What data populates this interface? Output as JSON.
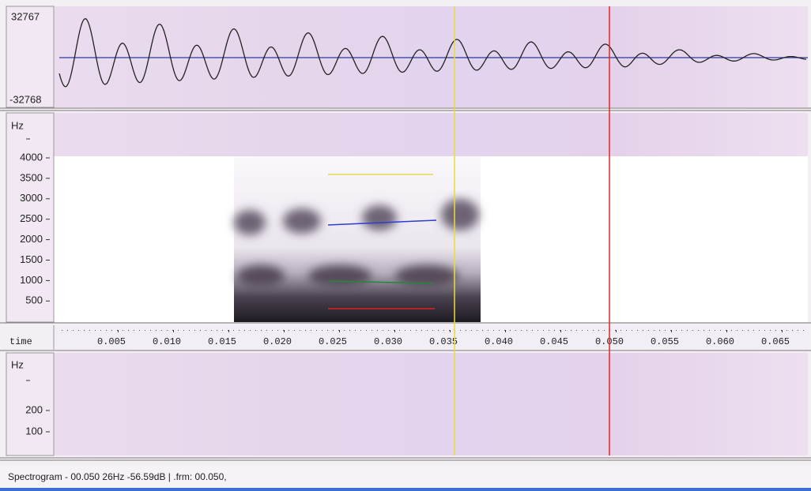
{
  "waveform": {
    "max_label": "32767",
    "min_label": "-32768"
  },
  "spectrogram": {
    "unit": "Hz",
    "ticks": [
      "4000",
      "3500",
      "3000",
      "2500",
      "2000",
      "1500",
      "1000",
      "500"
    ]
  },
  "time_axis": {
    "label": "time",
    "ticks": [
      "0.005",
      "0.010",
      "0.015",
      "0.020",
      "0.025",
      "0.030",
      "0.035",
      "0.040",
      "0.045",
      "0.050",
      "0.055",
      "0.060",
      "0.065"
    ]
  },
  "pitch": {
    "unit": "Hz",
    "ticks": [
      "200",
      "100"
    ]
  },
  "status_bar": {
    "text": "Spectrogram - 00.050 26Hz -56.59dB | .frm: 00.050,"
  }
}
